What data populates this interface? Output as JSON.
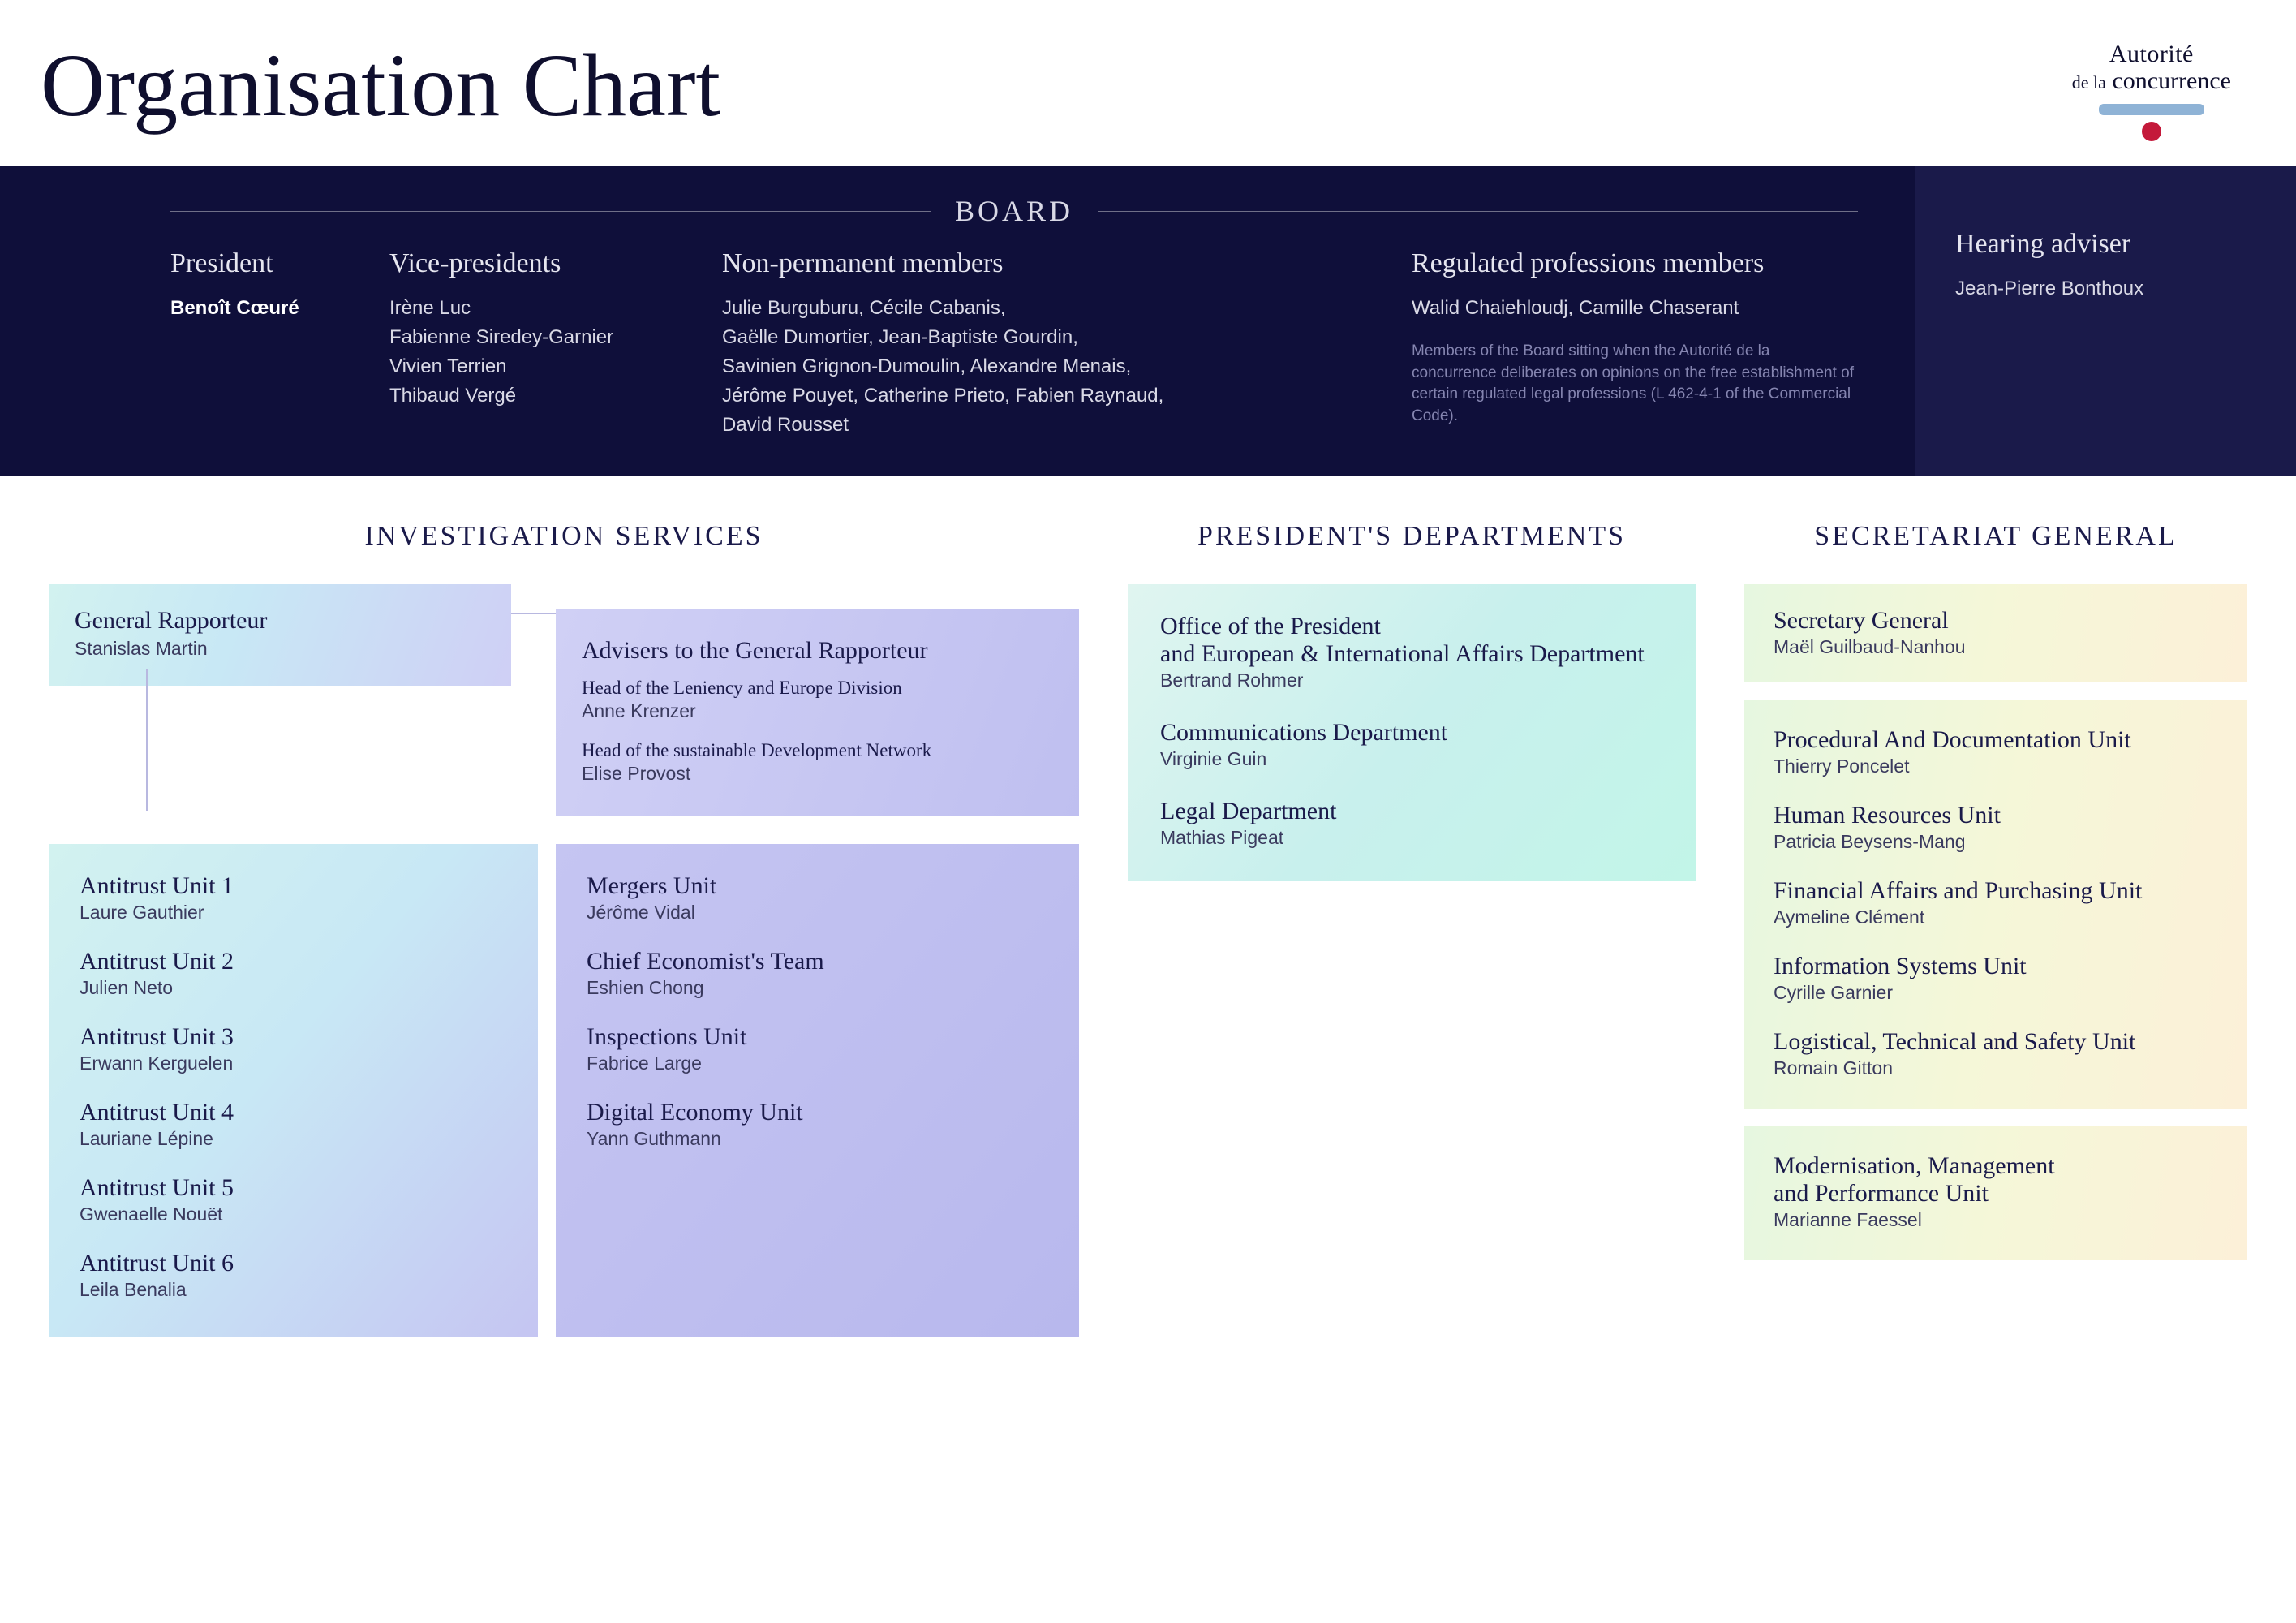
{
  "page_title": "Organisation Chart",
  "logo": {
    "line1": "Autorité",
    "line2_small": "de la",
    "line2_big": "concurrence"
  },
  "board": {
    "title": "BOARD",
    "president": {
      "heading": "President",
      "names": "Benoît Cœuré"
    },
    "vice_presidents": {
      "heading": "Vice-presidents",
      "names": "Irène Luc\nFabienne Siredey-Garnier\nVivien Terrien\nThibaud Vergé"
    },
    "non_permanent": {
      "heading": "Non-permanent members",
      "names": "Julie Burguburu, Cécile Cabanis,\nGaëlle Dumortier, Jean-Baptiste Gourdin,\nSavinien Grignon-Dumoulin, Alexandre Menais,\nJérôme Pouyet, Catherine Prieto, Fabien Raynaud,\nDavid Rousset"
    },
    "regulated": {
      "heading": "Regulated professions members",
      "names": "Walid Chaiehloudj, Camille Chaserant",
      "note": "Members of the Board sitting when the Autorité de la concurrence deliberates on opinions on the free establishment of certain regulated legal professions (L 462-4-1 of the Commercial Code)."
    },
    "hearing": {
      "heading": "Hearing adviser",
      "names": "Jean-Pierre Bonthoux"
    }
  },
  "investigation": {
    "title": "INVESTIGATION SERVICES",
    "rapporteur": {
      "heading": "General Rapporteur",
      "name": "Stanislas Martin"
    },
    "advisers": {
      "heading": "Advisers to the General Rapporteur",
      "r1_title": "Head of the Leniency and Europe Division",
      "r1_name": "Anne Krenzer",
      "r2_title": "Head of the sustainable Development Network",
      "r2_name": "Elise Provost"
    },
    "left_units": [
      {
        "heading": "Antitrust Unit 1",
        "name": "Laure Gauthier"
      },
      {
        "heading": "Antitrust Unit 2",
        "name": "Julien Neto"
      },
      {
        "heading": "Antitrust Unit 3",
        "name": "Erwann Kerguelen"
      },
      {
        "heading": "Antitrust Unit 4",
        "name": "Lauriane Lépine"
      },
      {
        "heading": "Antitrust Unit 5",
        "name": "Gwenaelle Nouët"
      },
      {
        "heading": "Antitrust Unit 6",
        "name": "Leila Benalia"
      }
    ],
    "right_units": [
      {
        "heading": "Mergers Unit",
        "name": "Jérôme Vidal"
      },
      {
        "heading": "Chief Economist's Team",
        "name": "Eshien Chong"
      },
      {
        "heading": "Inspections Unit",
        "name": "Fabrice Large"
      },
      {
        "heading": "Digital Economy Unit",
        "name": "Yann Guthmann"
      }
    ]
  },
  "president_depts": {
    "title": "PRESIDENT'S DEPARTMENTS",
    "blocks": [
      {
        "heading": "Office of the President\nand European & International Affairs Department",
        "name": "Bertrand Rohmer"
      },
      {
        "heading": "Communications Department",
        "name": "Virginie Guin"
      },
      {
        "heading": "Legal Department",
        "name": "Mathias Pigeat"
      }
    ]
  },
  "secretariat": {
    "title": "SECRETARIAT GENERAL",
    "top": {
      "heading": "Secretary General",
      "name": "Maël Guilbaud-Nanhou"
    },
    "mid": [
      {
        "heading": "Procedural And Documentation Unit",
        "name": "Thierry Poncelet"
      },
      {
        "heading": "Human Resources Unit",
        "name": "Patricia Beysens-Mang"
      },
      {
        "heading": "Financial Affairs and Purchasing Unit",
        "name": "Aymeline Clément"
      },
      {
        "heading": "Information Systems Unit",
        "name": "Cyrille Garnier"
      },
      {
        "heading": "Logistical, Technical and Safety Unit",
        "name": "Romain Gitton"
      }
    ],
    "bottom": {
      "heading": "Modernisation, Management\nand Performance Unit",
      "name": "Marianne Faessel"
    }
  },
  "styling": {
    "board_main_bg": "#0f0f3a",
    "board_side_bg": "#1a1a4a",
    "title_color": "#0f0f2e",
    "section_title_color": "#1a1a4a",
    "gradient_teal_purple": [
      "#d2f2f0",
      "#c8e8f5",
      "#cfcff5"
    ],
    "gradient_purple": [
      "#c5c5f2",
      "#b8b8ed"
    ],
    "gradient_green": [
      "#e0f5f0",
      "#c8f0ed",
      "#c2f5e8"
    ],
    "gradient_yellow": [
      "#e6f7e0",
      "#f5f7d8",
      "#fcf0d8"
    ],
    "logo_bar_color": "#8fb3d6",
    "logo_dot_color": "#c4193a"
  }
}
